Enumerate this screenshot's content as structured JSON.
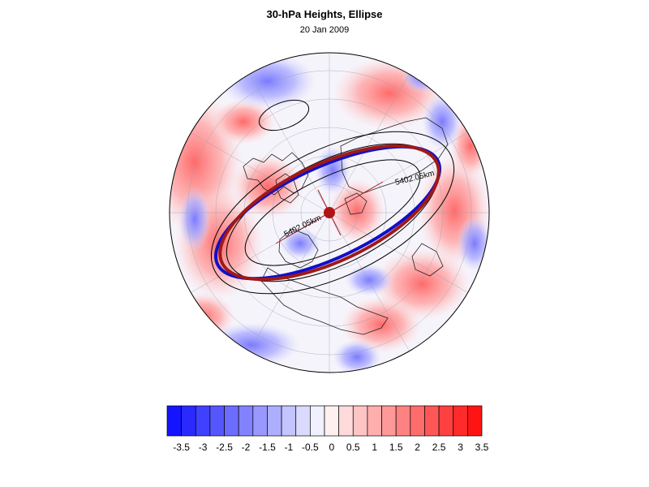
{
  "header": {
    "title": "30-hPa Heights, Ellipse",
    "date": "20 Jan 2009"
  },
  "map": {
    "projection": "polar-stereographic-north",
    "contour_labels": [
      "5402.05km",
      "5402.05km"
    ],
    "colors": {
      "ellipse_fit": "#a01818",
      "observed_contour": "#1010c8",
      "contours": "#000000",
      "coastline": "#222222",
      "center_marker": "#b01414"
    }
  },
  "colorbar": {
    "tick_labels": [
      "-3.5",
      "-3",
      "-2.5",
      "-2",
      "-1.5",
      "-1",
      "-0.5",
      "0",
      "0.5",
      "1",
      "1.5",
      "2",
      "2.5",
      "3",
      "3.5"
    ],
    "colors": [
      "#1414ff",
      "#2a2aff",
      "#4040ff",
      "#5656ff",
      "#6c6cff",
      "#8282ff",
      "#9898ff",
      "#aeaeff",
      "#c4c4ff",
      "#dadaff",
      "#f0f0ff",
      "#fff0f0",
      "#ffdada",
      "#ffc4c4",
      "#ffaeae",
      "#ff9898",
      "#ff8282",
      "#ff6c6c",
      "#ff5656",
      "#ff4040",
      "#ff2a2a",
      "#ff1414"
    ]
  }
}
